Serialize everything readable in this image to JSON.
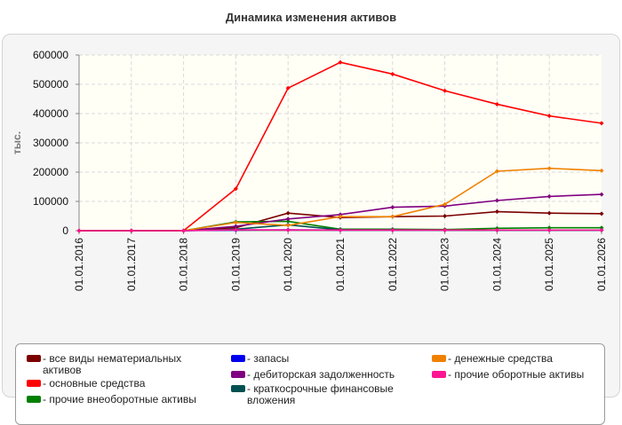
{
  "chart_data": {
    "type": "line",
    "title": "Динамика изменения активов",
    "ylabel": "тыс.",
    "xlabel": "",
    "ylim": [
      0,
      600000
    ],
    "yticks": [
      "600000",
      "500000",
      "400000",
      "300000",
      "200000",
      "100000",
      "0"
    ],
    "grid": true,
    "legend_position": "bottom",
    "categories": [
      "01.01.2016",
      "01.01.2017",
      "01.01.2018",
      "01.01.2019",
      "01.01.2020",
      "01.01.2021",
      "01.01.2022",
      "01.01.2023",
      "01.01.2024",
      "01.01.2025",
      "01.01.2026"
    ],
    "series": [
      {
        "name": "все виды нематериальных активов",
        "color": "#7b0000",
        "values": [
          0,
          0,
          0,
          10000,
          60000,
          45000,
          48000,
          50000,
          65000,
          60000,
          58000
        ]
      },
      {
        "name": "основные средства",
        "color": "#ff0000",
        "values": [
          0,
          0,
          0,
          143000,
          487000,
          575000,
          535000,
          478000,
          432000,
          392000,
          367000
        ]
      },
      {
        "name": "прочие внеоборотные активы",
        "color": "#008000",
        "values": [
          0,
          0,
          0,
          30000,
          32000,
          5000,
          5000,
          4000,
          8000,
          10000,
          10000
        ]
      },
      {
        "name": "запасы",
        "color": "#0000ee",
        "values": [
          0,
          0,
          0,
          2000,
          3000,
          2000,
          2000,
          2000,
          2000,
          2000,
          2000
        ]
      },
      {
        "name": "дебиторская задолженность",
        "color": "#800080",
        "values": [
          0,
          0,
          0,
          15000,
          40000,
          55000,
          80000,
          84000,
          103000,
          117000,
          124000
        ]
      },
      {
        "name": "краткосрочные финансовые вложения",
        "color": "#005050",
        "values": [
          0,
          0,
          0,
          5000,
          20000,
          3000,
          3000,
          2000,
          2000,
          2000,
          2000
        ]
      },
      {
        "name": "денежные средства",
        "color": "#f08000",
        "values": [
          0,
          0,
          0,
          28000,
          18000,
          48000,
          48000,
          90000,
          203000,
          213000,
          205000
        ]
      },
      {
        "name": "прочие оборотные активы",
        "color": "#ff1493",
        "values": [
          0,
          0,
          0,
          3000,
          2000,
          2000,
          2000,
          2000,
          2000,
          2000,
          2000
        ]
      }
    ]
  }
}
